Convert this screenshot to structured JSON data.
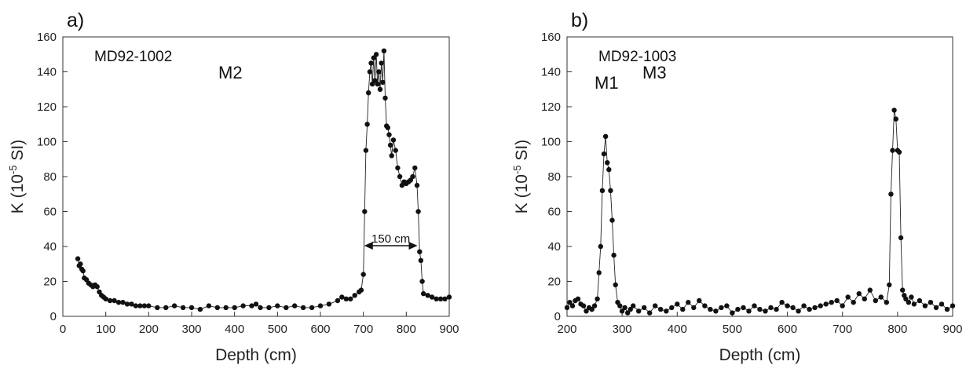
{
  "chart_data": [
    {
      "type": "line",
      "panel_label": "a)",
      "core_label": "MD92-1002",
      "xlabel": "Depth (cm)",
      "ylabel": "K (10-5 SI)",
      "xlim": [
        0,
        900
      ],
      "ylim": [
        0,
        160
      ],
      "xticks": [
        "0",
        "100",
        "200",
        "300",
        "400",
        "500",
        "600",
        "700",
        "800",
        "900"
      ],
      "yticks": [
        "0",
        "20",
        "40",
        "60",
        "80",
        "100",
        "120",
        "140",
        "160"
      ],
      "annotations": [
        {
          "text": "M1"
        },
        {
          "text": "150 cm"
        }
      ],
      "series": [
        {
          "x": [
            35,
            38,
            41,
            44,
            47,
            50,
            55,
            60,
            65,
            70,
            75,
            80,
            85,
            90,
            95,
            100,
            110,
            120,
            130,
            140,
            150,
            160,
            170,
            180,
            190,
            200,
            220,
            240,
            260,
            280,
            300,
            320,
            340,
            360,
            380,
            400,
            420,
            440,
            450,
            460,
            480,
            500,
            520,
            540,
            560,
            580,
            600,
            620,
            640,
            650,
            660,
            670,
            680,
            690,
            695,
            700,
            703,
            706,
            709,
            712,
            715,
            718,
            721,
            724,
            727,
            730,
            733,
            736,
            739,
            742,
            745,
            748,
            751,
            754,
            757,
            760,
            763,
            766,
            770,
            775,
            780,
            785,
            790,
            795,
            800,
            805,
            810,
            815,
            820,
            825,
            828,
            831,
            834,
            837,
            840,
            850,
            860,
            870,
            880,
            890,
            900
          ],
          "y": [
            33,
            29,
            30,
            27,
            26,
            22,
            21,
            19,
            18,
            17,
            18,
            17,
            14,
            12,
            11,
            10,
            9,
            9,
            8,
            8,
            7,
            7,
            6,
            6,
            6,
            6,
            5,
            5,
            6,
            5,
            5,
            4,
            6,
            5,
            5,
            5,
            6,
            6,
            7,
            5,
            5,
            6,
            5,
            6,
            5,
            5,
            6,
            7,
            9,
            11,
            10,
            10,
            12,
            14,
            15,
            24,
            60,
            95,
            110,
            128,
            140,
            145,
            133,
            148,
            135,
            150,
            133,
            140,
            130,
            145,
            134,
            152,
            125,
            109,
            108,
            104,
            98,
            92,
            101,
            95,
            85,
            80,
            75,
            77,
            76,
            77,
            78,
            80,
            85,
            75,
            60,
            37,
            32,
            20,
            13,
            12,
            11,
            10,
            10,
            10,
            11
          ]
        }
      ]
    },
    {
      "type": "line",
      "panel_label": "b)",
      "core_label": "MD92-1003",
      "xlabel": "Depth (cm)",
      "ylabel": "K (10-5 SI)",
      "xlim": [
        200,
        900
      ],
      "ylim": [
        0,
        160
      ],
      "xticks": [
        "200",
        "300",
        "400",
        "500",
        "600",
        "700",
        "800",
        "900"
      ],
      "yticks": [
        "0",
        "20",
        "40",
        "60",
        "80",
        "100",
        "120",
        "140",
        "160"
      ],
      "annotations": [
        {
          "text": "M2"
        },
        {
          "text": "M3"
        }
      ],
      "series": [
        {
          "x": [
            200,
            205,
            210,
            215,
            220,
            225,
            230,
            235,
            240,
            245,
            250,
            255,
            258,
            261,
            264,
            267,
            270,
            273,
            276,
            279,
            282,
            285,
            288,
            292,
            296,
            300,
            305,
            310,
            315,
            320,
            330,
            340,
            350,
            360,
            370,
            380,
            390,
            400,
            410,
            420,
            430,
            440,
            450,
            460,
            470,
            480,
            490,
            500,
            510,
            520,
            530,
            540,
            550,
            560,
            570,
            580,
            590,
            600,
            610,
            620,
            630,
            640,
            650,
            660,
            670,
            680,
            690,
            700,
            710,
            720,
            730,
            740,
            750,
            760,
            770,
            780,
            785,
            788,
            791,
            794,
            797,
            800,
            803,
            806,
            809,
            812,
            815,
            820,
            825,
            830,
            840,
            850,
            860,
            870,
            880,
            890,
            900
          ],
          "y": [
            5,
            8,
            6,
            9,
            10,
            7,
            6,
            3,
            5,
            4,
            6,
            10,
            25,
            40,
            72,
            93,
            103,
            88,
            84,
            72,
            55,
            35,
            18,
            8,
            6,
            3,
            5,
            2,
            4,
            6,
            3,
            5,
            2,
            6,
            4,
            3,
            5,
            7,
            4,
            8,
            5,
            9,
            6,
            4,
            3,
            5,
            6,
            2,
            4,
            5,
            3,
            6,
            4,
            3,
            5,
            4,
            8,
            6,
            5,
            3,
            6,
            4,
            5,
            6,
            7,
            8,
            9,
            6,
            11,
            8,
            13,
            10,
            15,
            9,
            11,
            8,
            18,
            70,
            95,
            118,
            113,
            95,
            94,
            45,
            15,
            12,
            10,
            8,
            11,
            7,
            9,
            6,
            8,
            5,
            7,
            4,
            6
          ]
        }
      ]
    }
  ]
}
